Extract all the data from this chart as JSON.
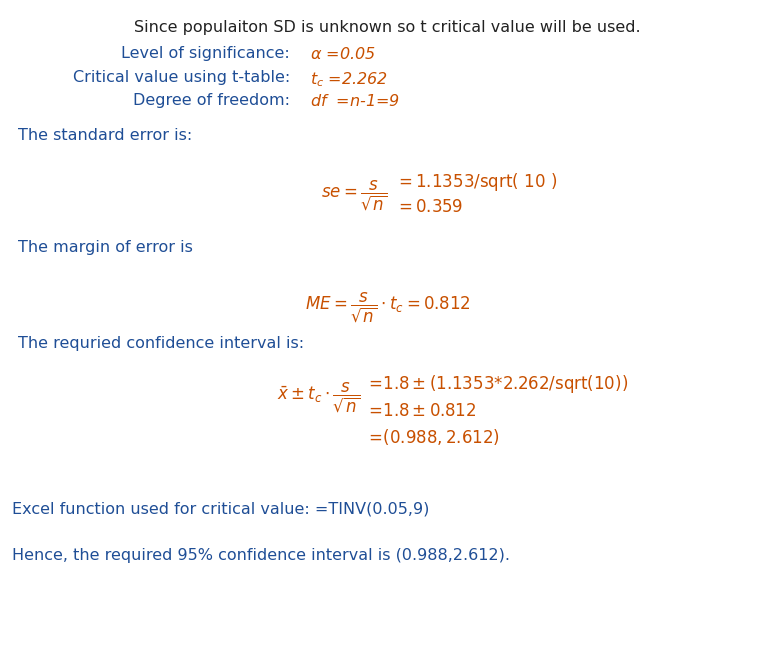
{
  "bg_color": "#ffffff",
  "blue": "#1f4e96",
  "orange": "#c85000",
  "dark": "#222222",
  "fig_width": 7.75,
  "fig_height": 6.63,
  "dpi": 100,
  "title_line": "Since populaiton SD is unknown so t critical value will be used.",
  "sig_label": "Level of significance:",
  "crit_label": "Critical value using t-table:",
  "dof_label": "Degree of freedom:",
  "se_header": "The standard error is:",
  "me_header": "The margin of error is",
  "ci_header": "The requried confidence interval is:",
  "excel_note": "Excel function used for critical value: =TINV(0.05,9)",
  "hence_note": "Hence, the required 95% confidence interval is (0.988,2.612).",
  "fs_body": 11.5,
  "fs_math": 12.0
}
